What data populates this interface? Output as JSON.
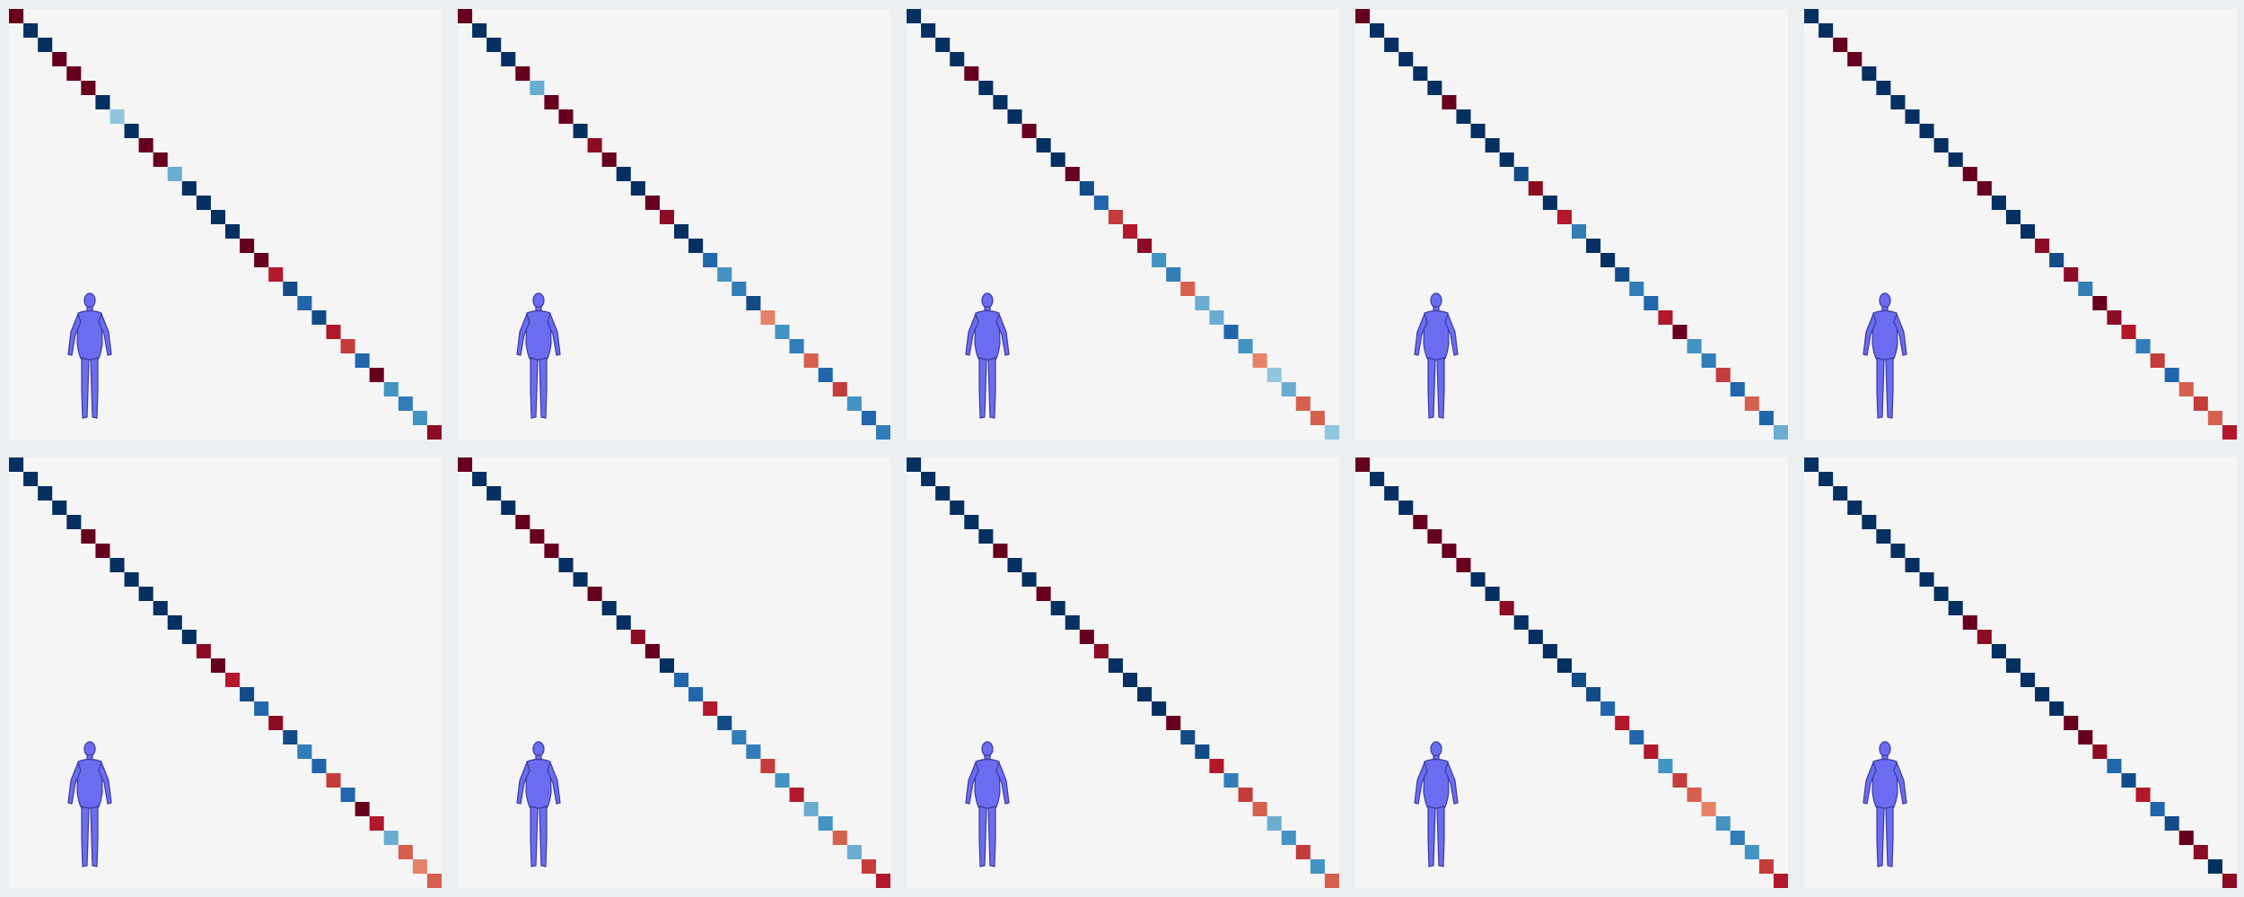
{
  "panels": [
    {
      "diagonal": [
        1,
        -1,
        -1,
        1,
        1,
        1,
        -1,
        -0.4,
        -1,
        1,
        1,
        -0.5,
        -1,
        -1,
        -1,
        -1,
        1,
        1,
        0.8,
        -0.9,
        -0.8,
        -0.9,
        0.8,
        0.7,
        -0.8,
        1,
        -0.6,
        -0.7,
        -0.6,
        0.9
      ]
    },
    {
      "diagonal": [
        1,
        -1,
        -1,
        -1,
        1,
        -0.5,
        1,
        1,
        -1,
        0.9,
        1,
        -1,
        -1,
        1,
        0.9,
        -1,
        -1,
        -0.8,
        -0.6,
        -0.7,
        -0.9,
        0.5,
        -0.6,
        -0.7,
        0.6,
        -0.8,
        0.7,
        -0.6,
        -0.8,
        -0.7
      ]
    },
    {
      "diagonal": [
        -1,
        -1,
        -1,
        -1,
        1,
        -1,
        -1,
        -1,
        1,
        -1,
        -1,
        1,
        -0.9,
        -0.8,
        0.7,
        0.8,
        0.9,
        -0.6,
        -0.7,
        0.6,
        -0.5,
        -0.5,
        -0.8,
        -0.6,
        0.5,
        -0.4,
        -0.5,
        0.6,
        0.6,
        -0.4
      ]
    },
    {
      "diagonal": [
        1,
        -1,
        -1,
        -1,
        -1,
        -1,
        1,
        -1,
        -1,
        -1,
        -1,
        -0.9,
        0.9,
        -1,
        0.8,
        -0.7,
        -1,
        -1,
        -0.9,
        -0.7,
        -0.8,
        0.8,
        1,
        -0.6,
        -0.7,
        0.7,
        -0.8,
        0.6,
        -0.8,
        -0.5
      ]
    },
    {
      "diagonal": [
        -1,
        -1,
        1,
        1,
        -1,
        -1,
        -1,
        -1,
        -1,
        -1,
        -1,
        1,
        1,
        -1,
        -1,
        -1,
        0.9,
        -0.9,
        0.9,
        -0.7,
        1,
        0.9,
        0.8,
        -0.7,
        0.7,
        -0.8,
        0.6,
        0.7,
        0.6,
        0.8
      ]
    },
    {
      "diagonal": [
        -1,
        -1,
        -1,
        -1,
        -1,
        1,
        1,
        -1,
        -1,
        -1,
        -1,
        -1,
        -1,
        0.9,
        1,
        0.8,
        -0.9,
        -0.8,
        0.9,
        -0.9,
        -0.7,
        -0.8,
        0.7,
        -0.8,
        1,
        0.8,
        -0.5,
        0.6,
        0.5,
        0.6
      ]
    },
    {
      "diagonal": [
        1,
        -1,
        -1,
        -1,
        1,
        1,
        1,
        -1,
        -1,
        1,
        -1,
        -1,
        0.9,
        1,
        -1,
        -0.8,
        -0.8,
        0.8,
        -0.9,
        -0.7,
        -0.7,
        0.7,
        -0.6,
        0.8,
        -0.5,
        -0.6,
        0.6,
        -0.5,
        0.7,
        0.8
      ]
    },
    {
      "diagonal": [
        -1,
        -1,
        -1,
        -1,
        -1,
        -1,
        1,
        -1,
        -1,
        1,
        -1,
        -1,
        1,
        0.9,
        -1,
        -1,
        -1,
        -1,
        1,
        -0.9,
        -0.9,
        0.8,
        -0.7,
        0.7,
        0.6,
        -0.5,
        -0.6,
        0.7,
        -0.6,
        0.6
      ]
    },
    {
      "diagonal": [
        1,
        -1,
        -1,
        -1,
        1,
        1,
        1,
        1,
        -1,
        -1,
        0.9,
        -1,
        -1,
        -1,
        -1,
        -0.9,
        -0.9,
        -0.8,
        0.8,
        -0.8,
        0.8,
        -0.6,
        0.7,
        0.6,
        0.5,
        -0.6,
        -0.7,
        -0.6,
        0.7,
        0.8
      ]
    },
    {
      "diagonal": [
        -1,
        -1,
        -1,
        -1,
        -1,
        -1,
        -1,
        -1,
        -1,
        -1,
        -1,
        1,
        0.9,
        -1,
        -1,
        -1,
        -1,
        -1,
        1,
        1,
        0.9,
        -0.8,
        -0.9,
        0.8,
        -0.8,
        -0.9,
        1,
        0.9,
        -1,
        0.9
      ]
    }
  ]
}
